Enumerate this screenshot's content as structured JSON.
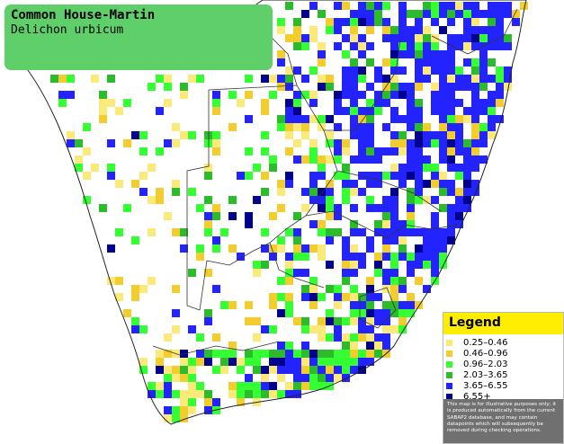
{
  "header": {
    "title": "Common House-Martin",
    "subtitle": "Delichon urbicum"
  },
  "legend": {
    "title": "Legend",
    "items": [
      {
        "label": "0.25–0.46",
        "color": "#fbe97a"
      },
      {
        "label": "0.46–0.96",
        "color": "#f3cc2e"
      },
      {
        "label": "0.96–2.03",
        "color": "#33ff33"
      },
      {
        "label": "2.03–3.65",
        "color": "#2bbb2b"
      },
      {
        "label": "3.65–6.55",
        "color": "#2323ff"
      },
      {
        "label": "6.55+",
        "color": "#00008f"
      }
    ],
    "note": "This map is for illustrative purposes only; it is produced automatically from the current SABAP2 database, and may contain datapoints which will subsequently be removed during checking operations."
  }
}
